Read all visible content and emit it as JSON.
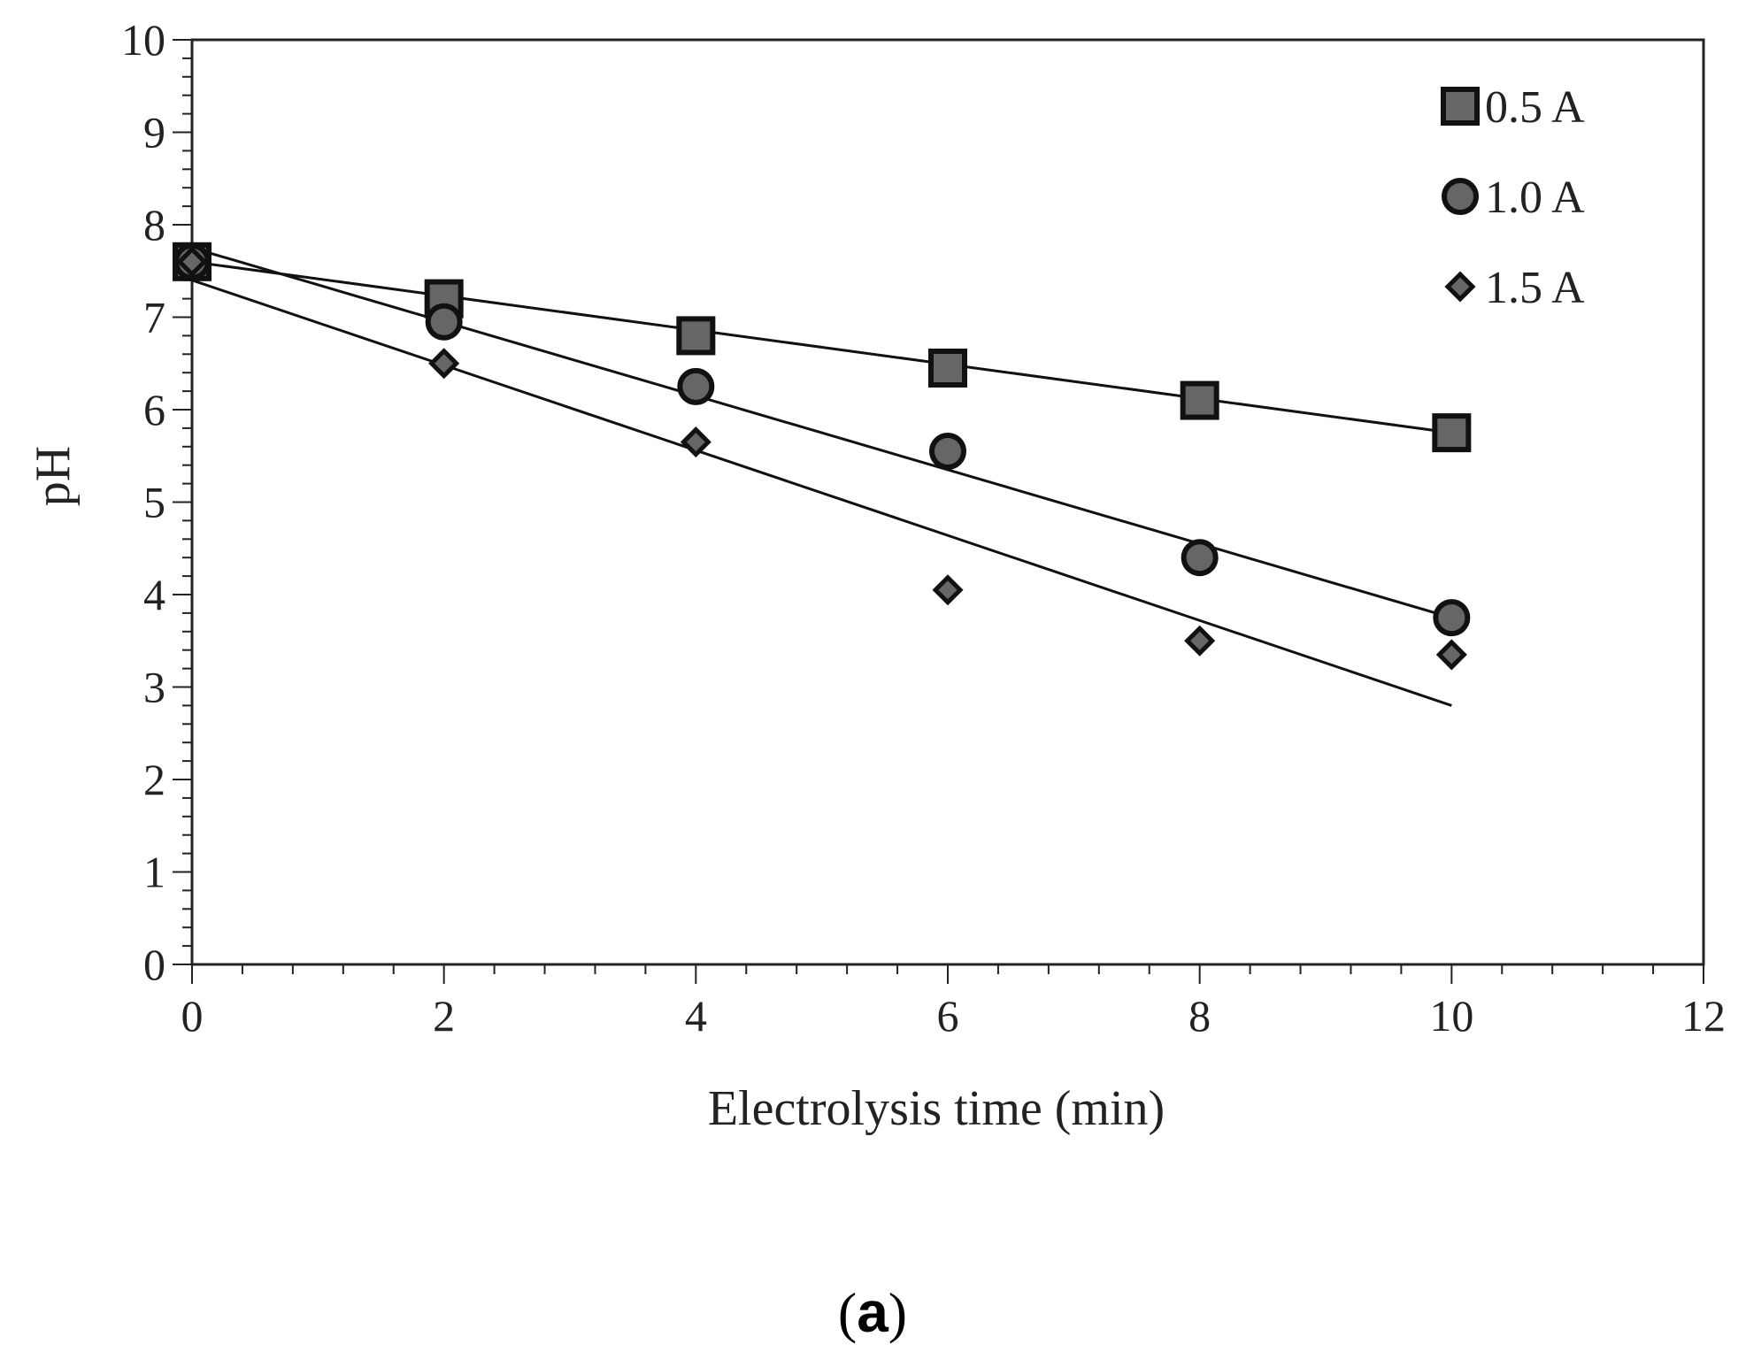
{
  "chart_data": {
    "type": "scatter",
    "xlabel": "Electrolysis time (min)",
    "ylabel": "pH",
    "xlim": [
      0,
      12
    ],
    "ylim": [
      0,
      10
    ],
    "x_ticks": [
      0,
      2,
      4,
      6,
      8,
      10,
      12
    ],
    "y_ticks": [
      0,
      1,
      2,
      3,
      4,
      5,
      6,
      7,
      8,
      9,
      10
    ],
    "x_minor_step": 0.4,
    "y_minor_step": 0.2,
    "grid": false,
    "legend_position": "top-right",
    "series": [
      {
        "name": "0.5 A",
        "marker": "square",
        "x": [
          0,
          2,
          4,
          6,
          8,
          10
        ],
        "y": [
          7.6,
          7.2,
          6.8,
          6.45,
          6.1,
          5.75
        ],
        "trendline": [
          [
            0,
            7.6
          ],
          [
            10,
            5.75
          ]
        ]
      },
      {
        "name": "1.0 A",
        "marker": "circle",
        "x": [
          0,
          2,
          4,
          6,
          8,
          10
        ],
        "y": [
          7.6,
          6.95,
          6.25,
          5.55,
          4.4,
          3.75
        ],
        "trendline": [
          [
            0,
            7.75
          ],
          [
            10,
            3.75
          ]
        ]
      },
      {
        "name": "1.5 A",
        "marker": "diamond",
        "x": [
          0,
          2,
          4,
          6,
          8,
          10
        ],
        "y": [
          7.6,
          6.5,
          5.65,
          4.05,
          3.5,
          3.35
        ],
        "trendline": [
          [
            0,
            7.4
          ],
          [
            10,
            2.8
          ]
        ]
      }
    ],
    "colors": {
      "marker_fill": "#666666",
      "marker_stroke": "#111111",
      "line": "#111111",
      "axis": "#222222"
    }
  },
  "caption": {
    "open": "(",
    "letter": "a",
    "close": ")"
  }
}
